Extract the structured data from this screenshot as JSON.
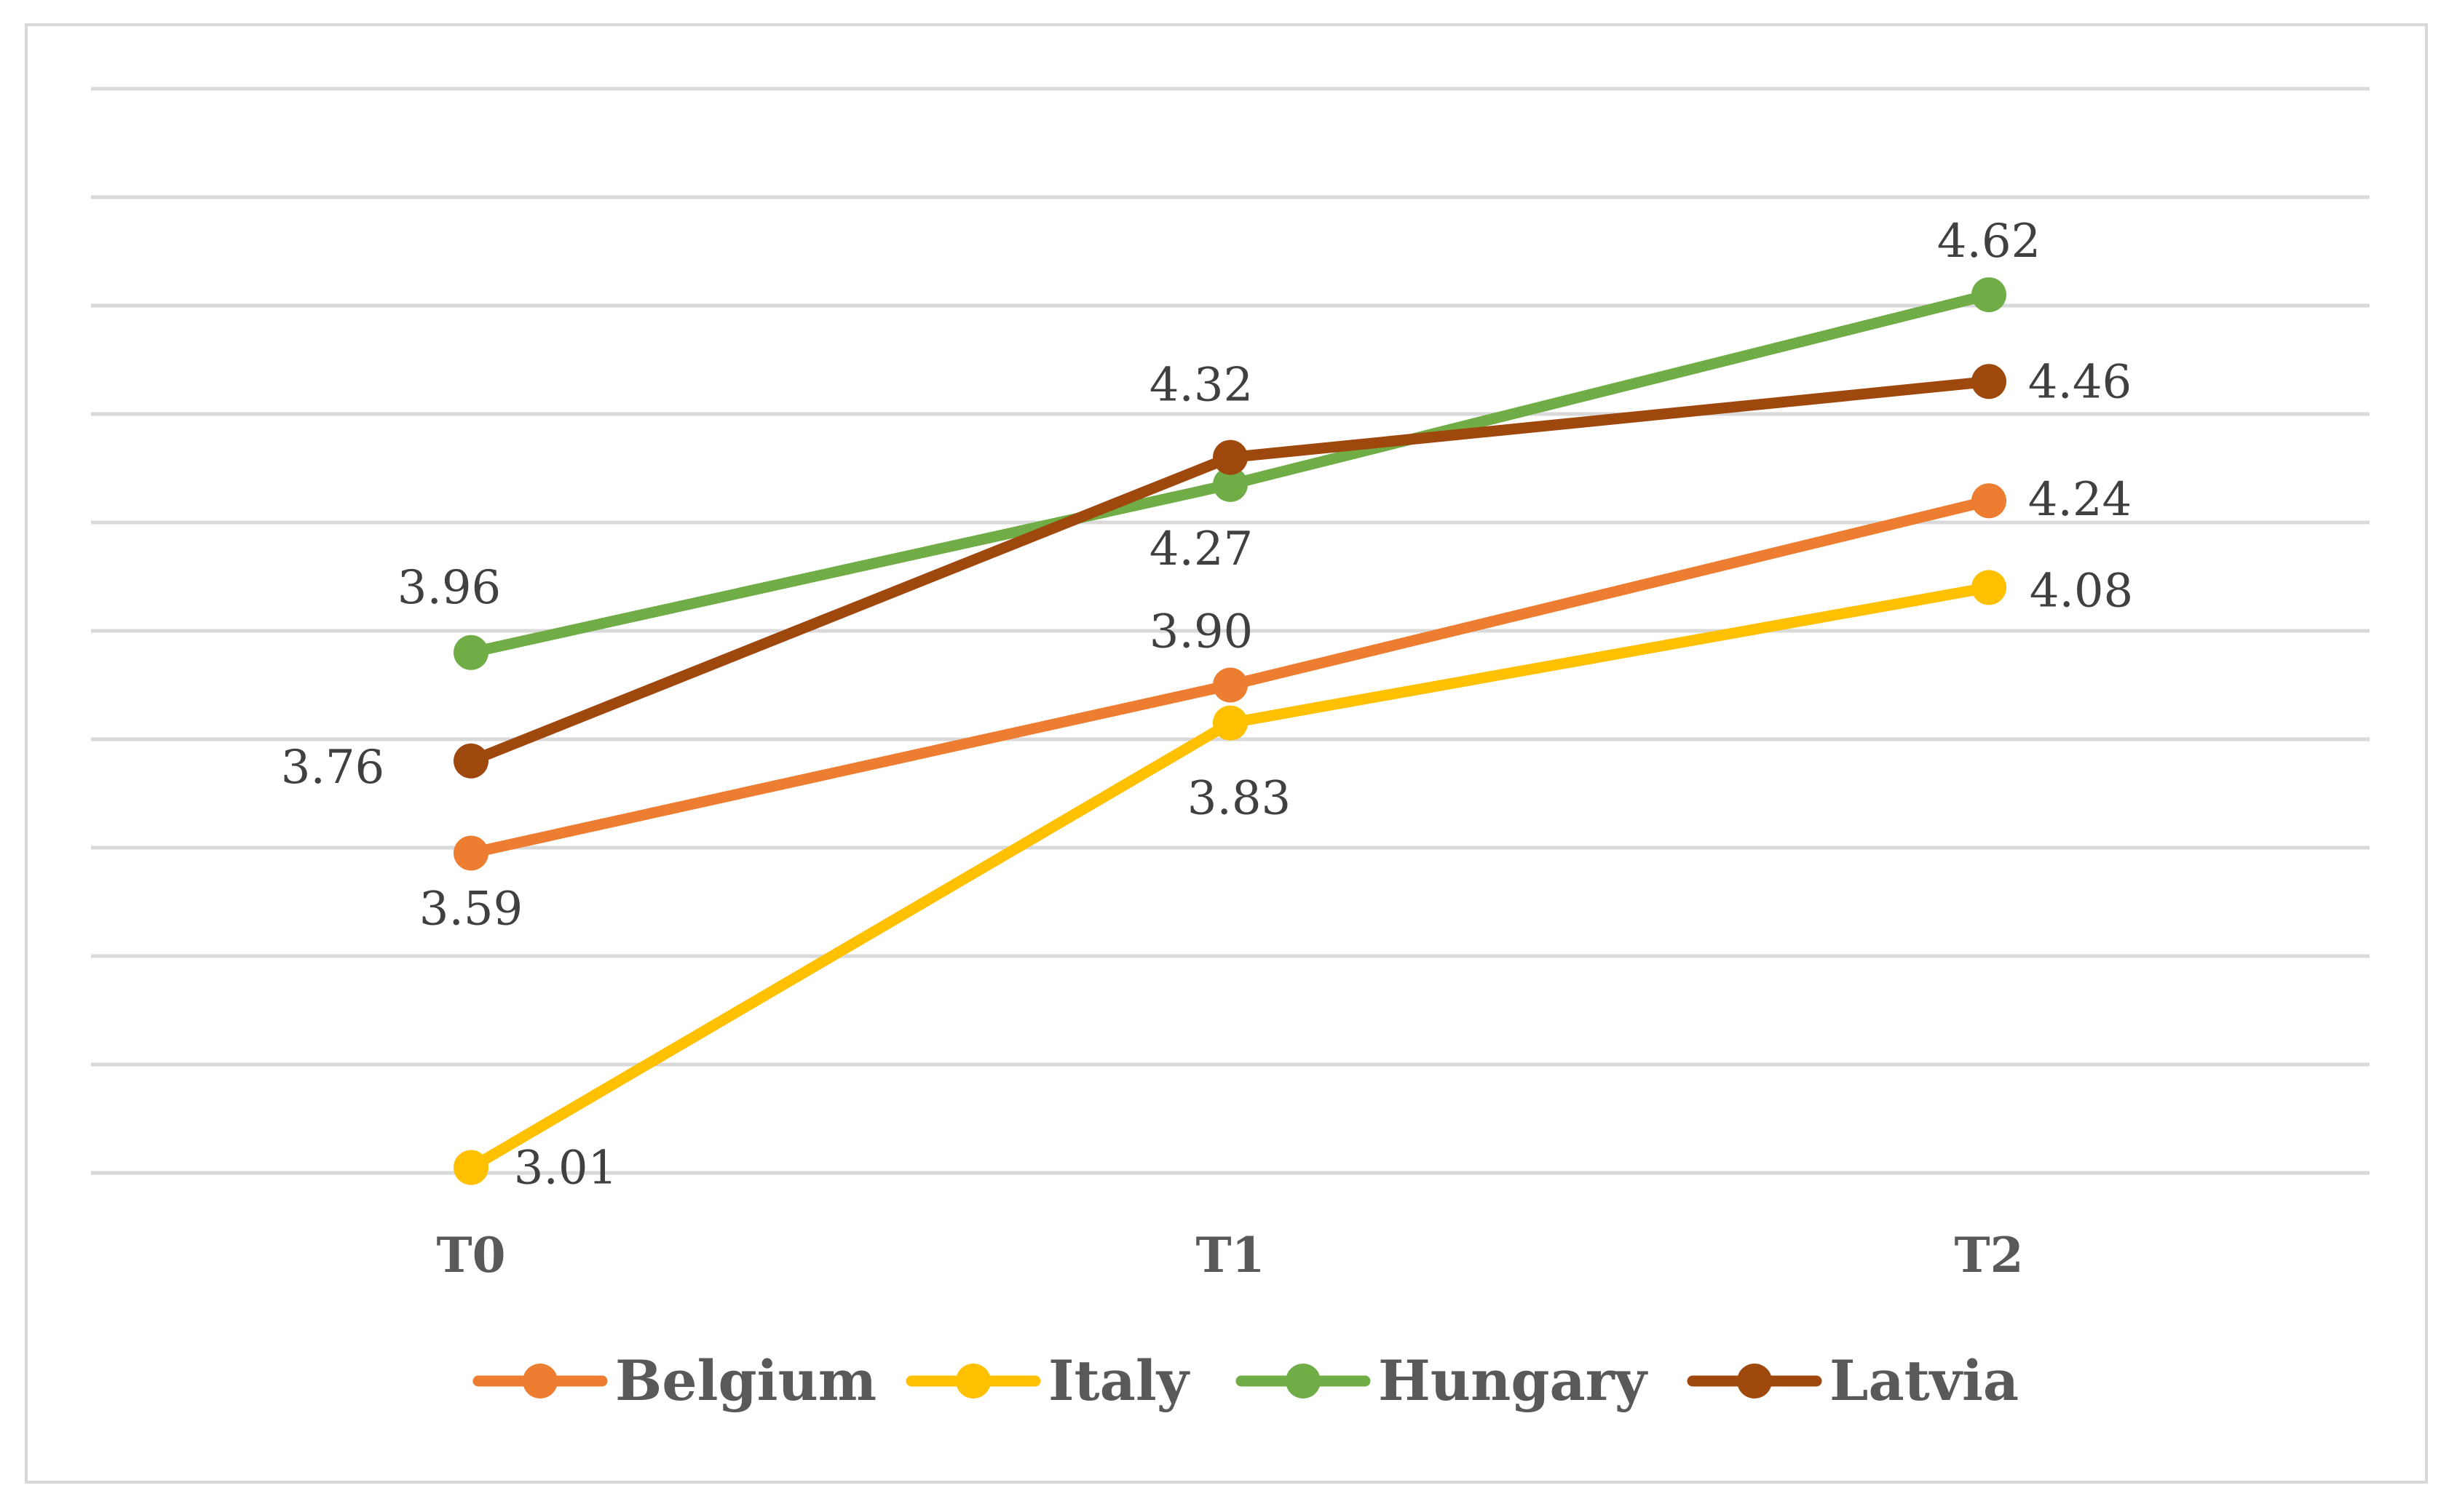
{
  "chart_data": {
    "type": "line",
    "title": "",
    "xlabel": "",
    "ylabel": "",
    "categories": [
      "T0",
      "T1",
      "T2"
    ],
    "ylim": [
      3.0,
      5.0
    ],
    "grid": true,
    "legend_position": "bottom",
    "series": [
      {
        "name": "Belgium",
        "color": "#ed7d31",
        "values": [
          3.59,
          3.9,
          4.24
        ],
        "labels": [
          "3.59",
          "3.90",
          "4.24"
        ]
      },
      {
        "name": "Italy",
        "color": "#ffc000",
        "values": [
          3.01,
          3.83,
          4.08
        ],
        "labels": [
          "3.01",
          "3.83",
          "4.08"
        ]
      },
      {
        "name": "Hungary",
        "color": "#70ad47",
        "values": [
          3.96,
          4.27,
          4.62
        ],
        "labels": [
          "3.96",
          "4.27",
          "4.62"
        ]
      },
      {
        "name": "Latvia",
        "color": "#9e480e",
        "values": [
          3.76,
          4.32,
          4.46
        ],
        "labels": [
          "3.76",
          "4.32",
          "4.46"
        ]
      }
    ]
  }
}
